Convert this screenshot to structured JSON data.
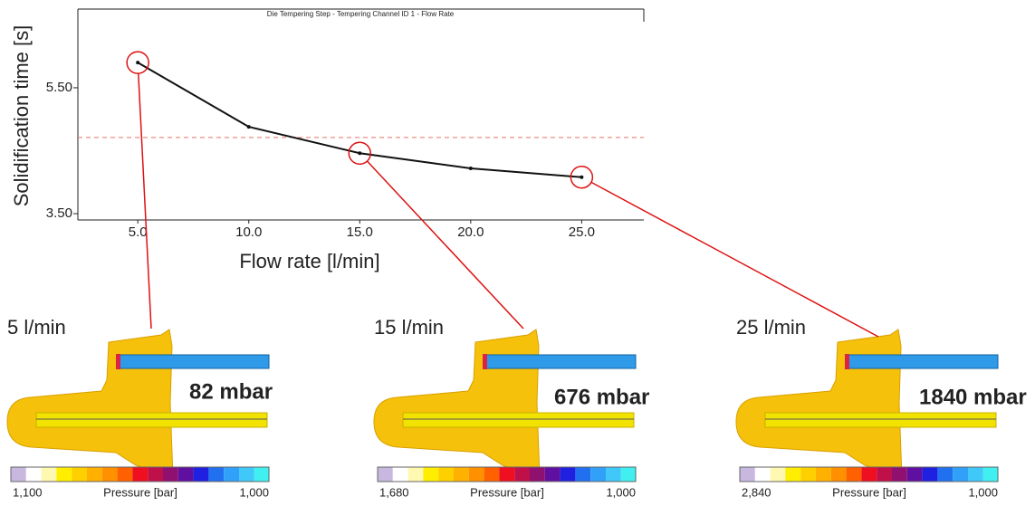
{
  "chart_data": {
    "type": "line",
    "title": "Die Tempering Step - Tempering Channel ID 1 - Flow Rate",
    "x_label": "Flow rate [l/min]",
    "y_label": "Solidification time [s]",
    "x": [
      5,
      10,
      15,
      20,
      25
    ],
    "series": [
      {
        "color": "#111111",
        "values": [
          5.9,
          4.88,
          4.46,
          4.22,
          4.08
        ]
      }
    ],
    "xlim": [
      2.3,
      27.8
    ],
    "ylim": [
      3.4,
      6.75
    ],
    "xticks": [
      {
        "value": 5,
        "label": "5.0"
      },
      {
        "value": 10,
        "label": "10.0"
      },
      {
        "value": 15,
        "label": "15.0"
      },
      {
        "value": 20,
        "label": "20.0"
      },
      {
        "value": 25,
        "label": "25.0"
      }
    ],
    "yticks": [
      {
        "value": 3.5,
        "label": "3.50"
      },
      {
        "value": 5.5,
        "label": "5.50"
      }
    ],
    "reference_line": {
      "value": 4.71,
      "color": "#e8706a"
    },
    "highlight_color": "#dd1111",
    "highlighted_points": [
      0,
      2,
      4
    ]
  },
  "panels": [
    {
      "label": "5 l/min",
      "pressure": "82 mbar",
      "colorbar": {
        "min_label": "1,100",
        "title": "Pressure [bar]",
        "max_label": "1,000"
      }
    },
    {
      "label": "15 l/min",
      "pressure": "676 mbar",
      "colorbar": {
        "min_label": "1,680",
        "title": "Pressure [bar]",
        "max_label": "1,000"
      }
    },
    {
      "label": "25 l/min",
      "pressure": "1840 mbar",
      "colorbar": {
        "min_label": "2,840",
        "title": "Pressure [bar]",
        "max_label": "1,000"
      }
    }
  ]
}
